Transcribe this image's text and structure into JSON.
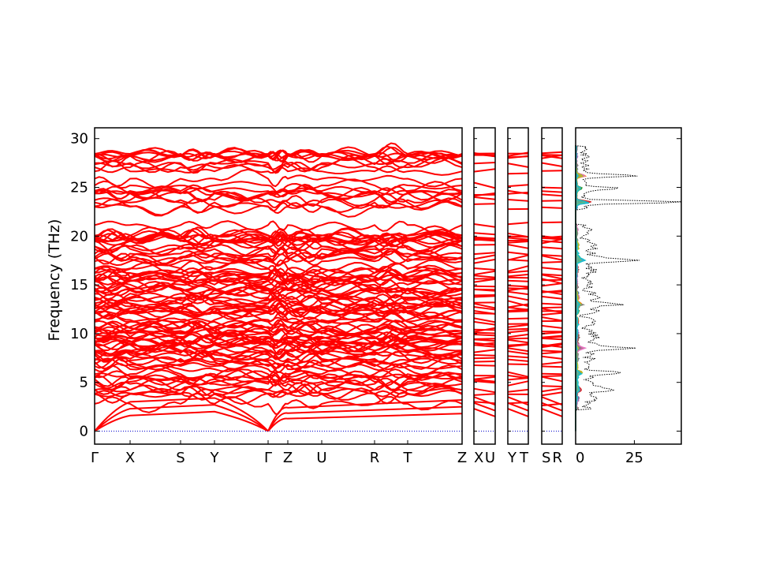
{
  "chart_data": {
    "type": "line",
    "title": "",
    "ylabel": "Frequency (THz)",
    "ylim": [
      -1.5,
      31
    ],
    "y_ticks": [
      0,
      5,
      10,
      15,
      20,
      25,
      30
    ],
    "band_color": "#ff0000",
    "zero_line_color": "#0000cc",
    "band_structure": {
      "segments": [
        {
          "labels": [
            "Γ",
            "X",
            "S",
            "Y",
            "Γ",
            "Z",
            "U",
            "R",
            "T",
            "Z"
          ]
        },
        {
          "labels": [
            "X",
            "U"
          ]
        },
        {
          "labels": [
            "Y",
            "T"
          ]
        },
        {
          "labels": [
            "S",
            "R"
          ]
        }
      ],
      "frequency_range": [
        0,
        29.3
      ],
      "band_gap": [
        22.0,
        22.8
      ],
      "acoustic_modes_at_gamma": 0
    },
    "dos": {
      "xlabel": "",
      "x_ticks": [
        0,
        25
      ],
      "xlim": [
        0,
        45
      ],
      "total_color": "#000000",
      "peaks": [
        {
          "frequency": 23.5,
          "value": 44
        },
        {
          "frequency": 26.2,
          "value": 22
        },
        {
          "frequency": 24.9,
          "value": 15
        },
        {
          "frequency": 17.5,
          "value": 18
        },
        {
          "frequency": 13.0,
          "value": 13
        },
        {
          "frequency": 8.5,
          "value": 16
        },
        {
          "frequency": 6.0,
          "value": 13
        },
        {
          "frequency": 4.2,
          "value": 10
        }
      ],
      "projected_colors": [
        "#1f77b4",
        "#ff7f0e",
        "#2ca02c",
        "#d62728",
        "#9467bd",
        "#8c564b",
        "#e377c2",
        "#7f7f7f",
        "#bcbd22",
        "#17becf"
      ]
    }
  }
}
